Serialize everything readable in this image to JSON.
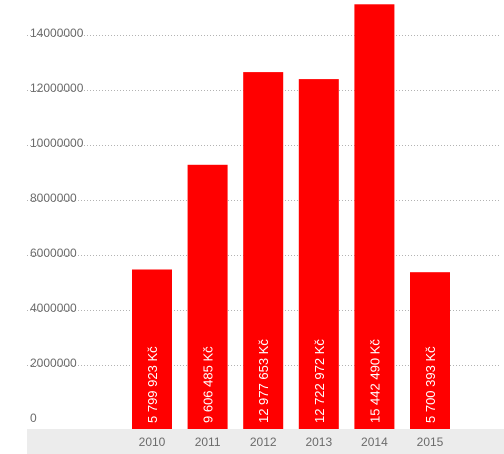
{
  "colors": {
    "bar": "#ff0000",
    "axis_band": "#ececec",
    "grid": "#b3b3b3",
    "tick_text": "#6b6b6b",
    "label_text": "#ffffff"
  },
  "chart_data": {
    "type": "bar",
    "title": "",
    "xlabel": "",
    "ylabel": "",
    "categories": [
      "2010",
      "2011",
      "2012",
      "2013",
      "2014",
      "2015"
    ],
    "values": [
      5799923,
      9606485,
      12977653,
      12722972,
      15442490,
      5700393
    ],
    "data_labels": [
      "5 799 923 Kč",
      "9 606 485 Kč",
      "12 977 653 Kč",
      "12 722 972 Kč",
      "15 442 490 Kč",
      "5 700 393 Kč"
    ],
    "y_ticks": [
      0,
      2000000,
      4000000,
      6000000,
      8000000,
      10000000,
      12000000,
      14000000
    ],
    "y_tick_labels": [
      "0",
      "2000000",
      "4000000",
      "6000000",
      "8000000",
      "10000000",
      "12000000",
      "14000000"
    ],
    "ylim": [
      0,
      15442490
    ],
    "grid": true,
    "legend": "none"
  }
}
